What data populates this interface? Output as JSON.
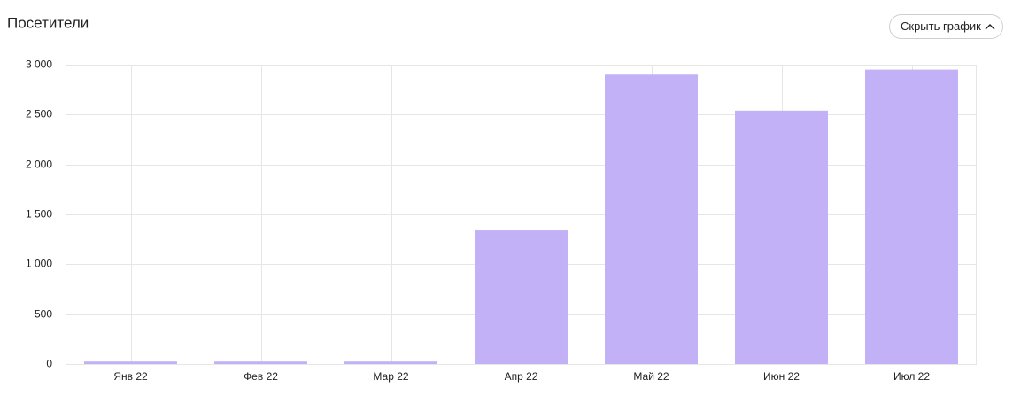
{
  "chart_data": {
    "type": "bar",
    "title": "Посетители",
    "button": "Скрыть график",
    "categories": [
      "Янв 22",
      "Фев 22",
      "Мар 22",
      "Апр 22",
      "Май 22",
      "Июн 22",
      "Июл 22"
    ],
    "values": [
      25,
      25,
      25,
      1340,
      2900,
      2540,
      2950
    ],
    "color": "#c2b1f7",
    "ylim": [
      0,
      3000
    ],
    "yticks": [
      0,
      500,
      {
        "value": 1000,
        "label": "1 000"
      },
      {
        "value": 1500,
        "label": "1 500"
      },
      {
        "value": 2000,
        "label": "2 000"
      },
      {
        "value": 2500,
        "label": "2 500"
      },
      {
        "value": 3000,
        "label": "3 000"
      }
    ],
    "grid": true
  }
}
